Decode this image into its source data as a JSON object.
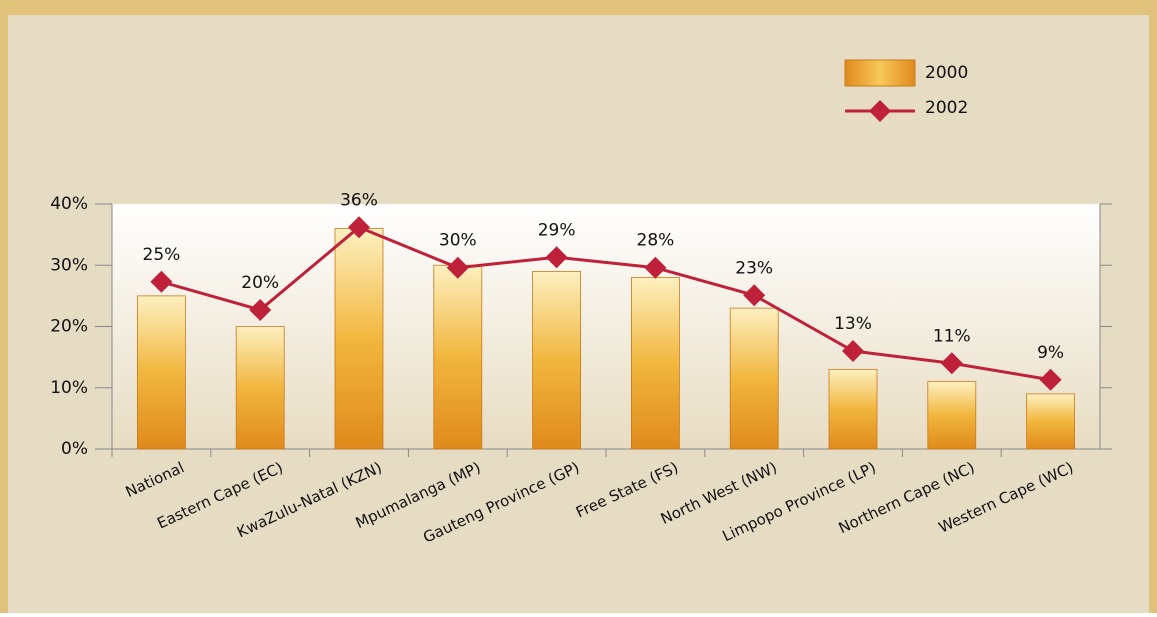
{
  "chart_data": {
    "type": "bar-line",
    "categories": [
      "National",
      "Eastern Cape (EC)",
      "KwaZulu-Natal (KZN)",
      "Mpumalanga (MP)",
      "Gauteng Province (GP)",
      "Free State (FS)",
      "North West (NW)",
      "Limpopo Province (LP)",
      "Northern Cape (NC)",
      "Western Cape (WC)"
    ],
    "series": [
      {
        "name": "2000",
        "type": "bar",
        "color": "#e9a12a",
        "values": [
          25,
          20,
          36,
          30,
          29,
          28,
          23,
          13,
          11,
          9
        ],
        "value_labels": [
          "25%",
          "20%",
          "36%",
          "30%",
          "29%",
          "28%",
          "23%",
          "13%",
          "11%",
          "9%"
        ]
      },
      {
        "name": "2002",
        "type": "line",
        "color": "#c0213a",
        "values": [
          27.3,
          22.7,
          36.2,
          29.6,
          31.3,
          29.6,
          25.1,
          16,
          14,
          11.3
        ]
      }
    ],
    "ylim": [
      0,
      40
    ],
    "yticks": [
      {
        "value": 0,
        "label": "0%"
      },
      {
        "value": 10,
        "label": "10%"
      },
      {
        "value": 20,
        "label": "20%"
      },
      {
        "value": 30,
        "label": "30%"
      },
      {
        "value": 40,
        "label": "40%"
      }
    ],
    "legend": "top-right"
  }
}
